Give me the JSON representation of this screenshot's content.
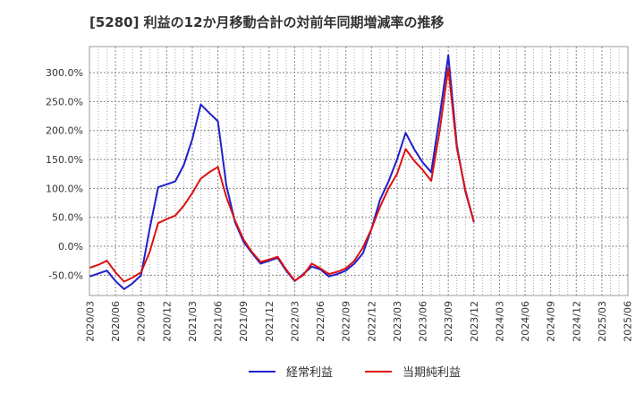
{
  "chart_data": {
    "type": "line",
    "title": "[5280]  利益の12か月移動合計の対前年同期増減率の推移",
    "xlabel": "",
    "ylabel": "",
    "ylim": [
      -85,
      345
    ],
    "y_ticks": [
      -50,
      0,
      50,
      100,
      150,
      200,
      250,
      300
    ],
    "y_tick_labels": [
      "-50.0%",
      "0.0%",
      "50.0%",
      "100.0%",
      "150.0%",
      "200.0%",
      "250.0%",
      "300.0%"
    ],
    "x_tick_labels": [
      "2020/03",
      "2020/06",
      "2020/09",
      "2020/12",
      "2021/03",
      "2021/06",
      "2021/09",
      "2021/12",
      "2022/03",
      "2022/06",
      "2022/09",
      "2022/12",
      "2023/03",
      "2023/06",
      "2023/09",
      "2023/12",
      "2024/03",
      "2024/06",
      "2024/09",
      "2024/12",
      "2025/03",
      "2025/06"
    ],
    "grid": true,
    "legend_position": "bottom",
    "series": [
      {
        "name": "経常利益",
        "color": "#1f1fcc",
        "values": [
          -52,
          -47,
          -42,
          -60,
          -74,
          -64,
          -50,
          30,
          102,
          107,
          112,
          140,
          185,
          245,
          230,
          216,
          105,
          42,
          8,
          -12,
          -30,
          -25,
          -20,
          -42,
          -60,
          -48,
          -35,
          -40,
          -52,
          -48,
          -42,
          -30,
          -12,
          30,
          80,
          112,
          150,
          196,
          168,
          145,
          128,
          225,
          330,
          175,
          95,
          42
        ]
      },
      {
        "name": "当期純利益",
        "color": "#dd1111",
        "values": [
          -37,
          -32,
          -25,
          -45,
          -61,
          -54,
          -45,
          -10,
          40,
          47,
          53,
          70,
          92,
          117,
          128,
          137,
          85,
          45,
          12,
          -10,
          -27,
          -23,
          -18,
          -40,
          -59,
          -50,
          -30,
          -38,
          -48,
          -44,
          -38,
          -25,
          -2,
          30,
          68,
          100,
          125,
          168,
          148,
          132,
          113,
          200,
          308,
          170,
          98,
          42
        ]
      }
    ]
  }
}
